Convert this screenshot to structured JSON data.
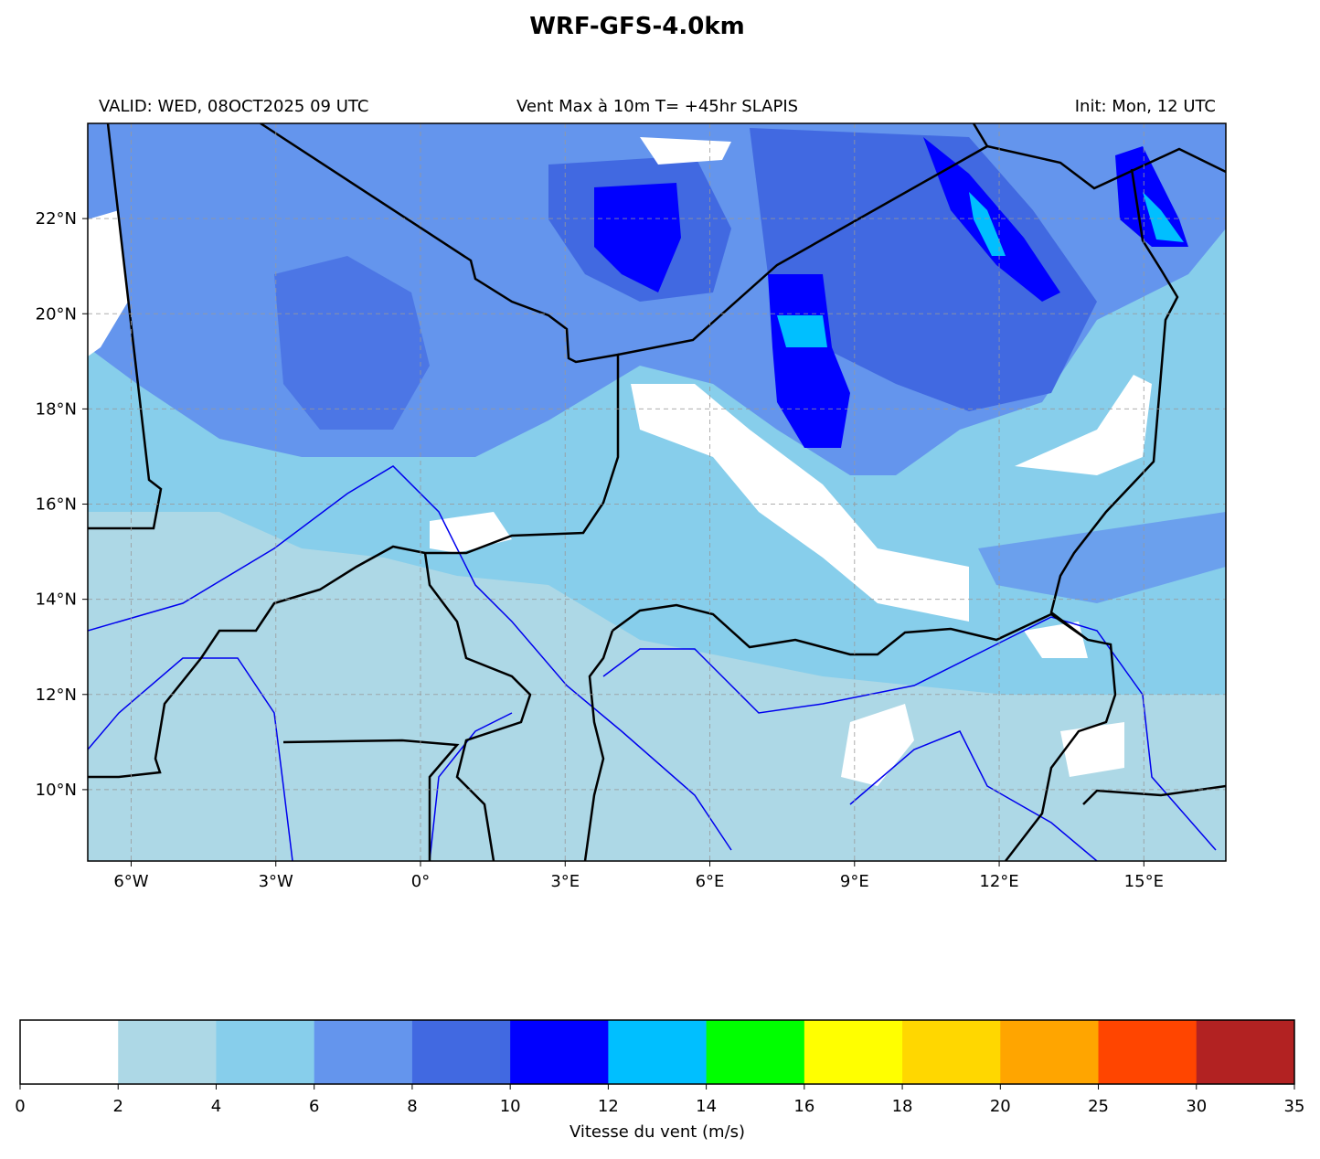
{
  "title": "WRF-GFS-4.0km",
  "subtitle_left": "VALID: WED, 08OCT2025 09 UTC",
  "subtitle_center": "Vent Max à 10m T= +45hr SLAPIS",
  "subtitle_right": "Init: Mon, 12 UTC",
  "map": {
    "xlim": [
      -6.9,
      16.7
    ],
    "ylim": [
      8.5,
      24
    ],
    "xticks": [
      {
        "value": -6,
        "label": "6°W"
      },
      {
        "value": -3,
        "label": "3°W"
      },
      {
        "value": 0,
        "label": "0°"
      },
      {
        "value": 3,
        "label": "3°E"
      },
      {
        "value": 6,
        "label": "6°E"
      },
      {
        "value": 9,
        "label": "9°E"
      },
      {
        "value": 12,
        "label": "12°E"
      },
      {
        "value": 15,
        "label": "15°E"
      }
    ],
    "yticks": [
      {
        "value": 10,
        "label": "10°N"
      },
      {
        "value": 12,
        "label": "12°N"
      },
      {
        "value": 14,
        "label": "14°N"
      },
      {
        "value": 16,
        "label": "16°N"
      },
      {
        "value": 18,
        "label": "18°N"
      },
      {
        "value": 20,
        "label": "20°N"
      },
      {
        "value": 22,
        "label": "22°N"
      }
    ],
    "grid": true
  },
  "colorbar": {
    "label": "Vitesse du vent (m/s)",
    "bounds": [
      0,
      2,
      4,
      6,
      8,
      10,
      12,
      14,
      16,
      18,
      20,
      25,
      30,
      35
    ],
    "colors": [
      "#ffffff",
      "#add8e6",
      "#87ceeb",
      "#6495ed",
      "#4169e1",
      "#0000ff",
      "#00bfff",
      "#00ff00",
      "#ffff00",
      "#ffd700",
      "#ffa500",
      "#ff4500",
      "#b22222"
    ]
  }
}
